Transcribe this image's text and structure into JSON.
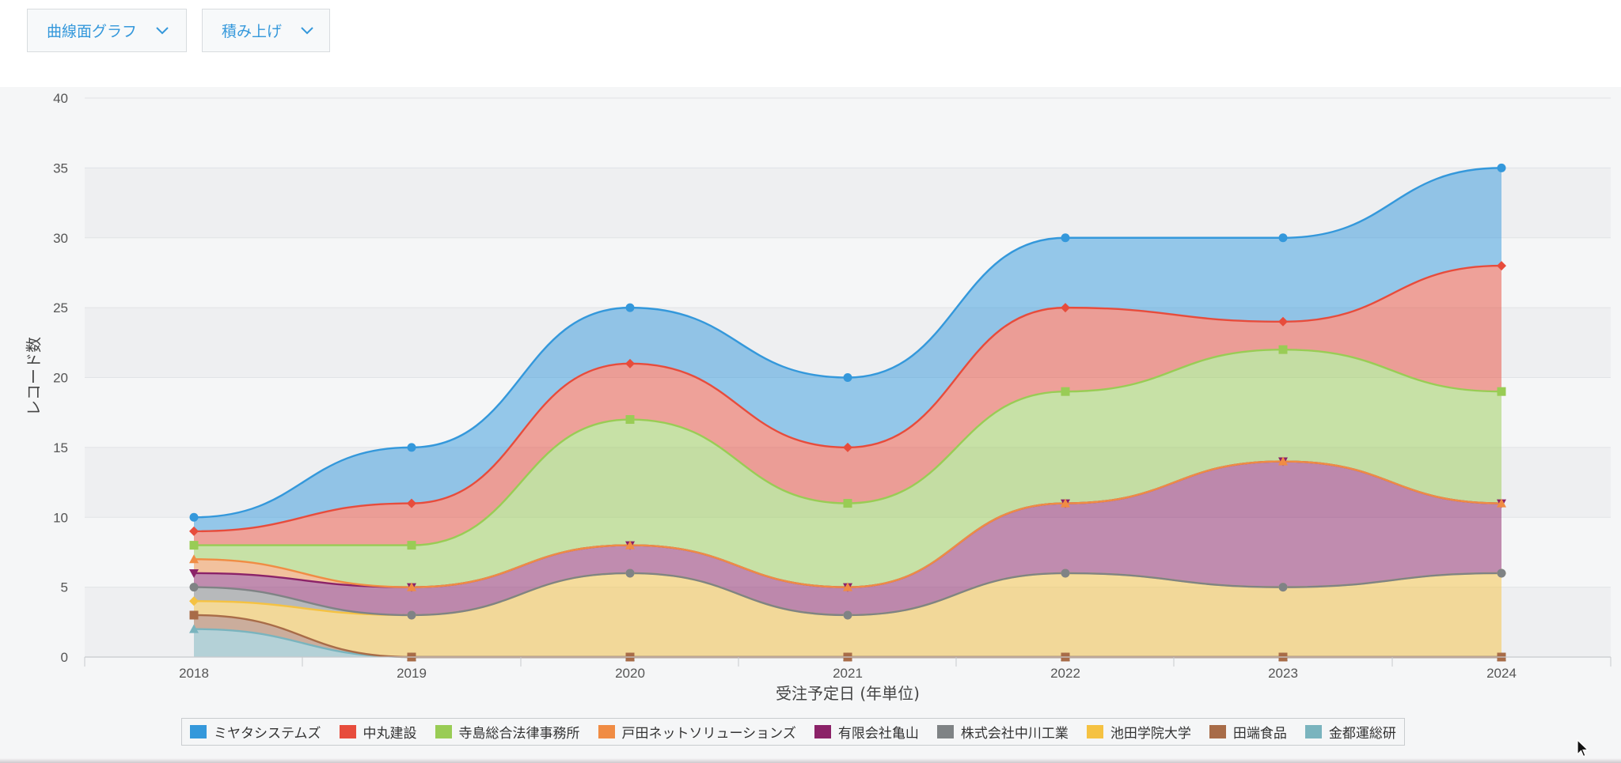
{
  "toolbar": {
    "chart_type_label": "曲線面グラフ",
    "stack_mode_label": "積み上げ"
  },
  "chart_data": {
    "type": "area",
    "stacked": true,
    "curve": "smooth",
    "x": [
      "2018",
      "2019",
      "2020",
      "2021",
      "2022",
      "2023",
      "2024"
    ],
    "xlabel": "受注予定日 (年単位)",
    "ylabel": "レコード数",
    "ylim": [
      0,
      40
    ],
    "yticks": [
      0,
      5,
      10,
      15,
      20,
      25,
      30,
      35,
      40
    ],
    "grid": true,
    "legend_position": "bottom",
    "series": [
      {
        "name": "ミヤタシステムズ",
        "color": "#3498db",
        "marker": "circle",
        "values": [
          1,
          4,
          4,
          5,
          5,
          6,
          7
        ]
      },
      {
        "name": "中丸建設",
        "color": "#e74c3c",
        "marker": "diamond",
        "values": [
          1,
          3,
          4,
          4,
          6,
          2,
          9
        ]
      },
      {
        "name": "寺島総合法律事務所",
        "color": "#99cc55",
        "marker": "square",
        "values": [
          1,
          3,
          9,
          6,
          8,
          8,
          8
        ]
      },
      {
        "name": "戸田ネットソリューションズ",
        "color": "#f08c44",
        "marker": "triangle",
        "values": [
          1,
          0,
          0,
          0,
          0,
          0,
          0
        ]
      },
      {
        "name": "有限会社亀山",
        "color": "#8b2268",
        "marker": "triangle-down",
        "values": [
          1,
          2,
          2,
          2,
          5,
          9,
          5
        ]
      },
      {
        "name": "株式会社中川工業",
        "color": "#7f8385",
        "marker": "circle",
        "values": [
          1,
          0,
          0,
          0,
          0,
          0,
          0
        ]
      },
      {
        "name": "池田学院大学",
        "color": "#f5c242",
        "marker": "diamond",
        "values": [
          1,
          3,
          6,
          3,
          6,
          5,
          6
        ]
      },
      {
        "name": "田端食品",
        "color": "#a86c48",
        "marker": "square",
        "values": [
          1,
          0,
          0,
          0,
          0,
          0,
          0
        ]
      },
      {
        "name": "金都運総研",
        "color": "#7ab4be",
        "marker": "triangle",
        "values": [
          2,
          0,
          0,
          0,
          0,
          0,
          0
        ]
      }
    ]
  }
}
